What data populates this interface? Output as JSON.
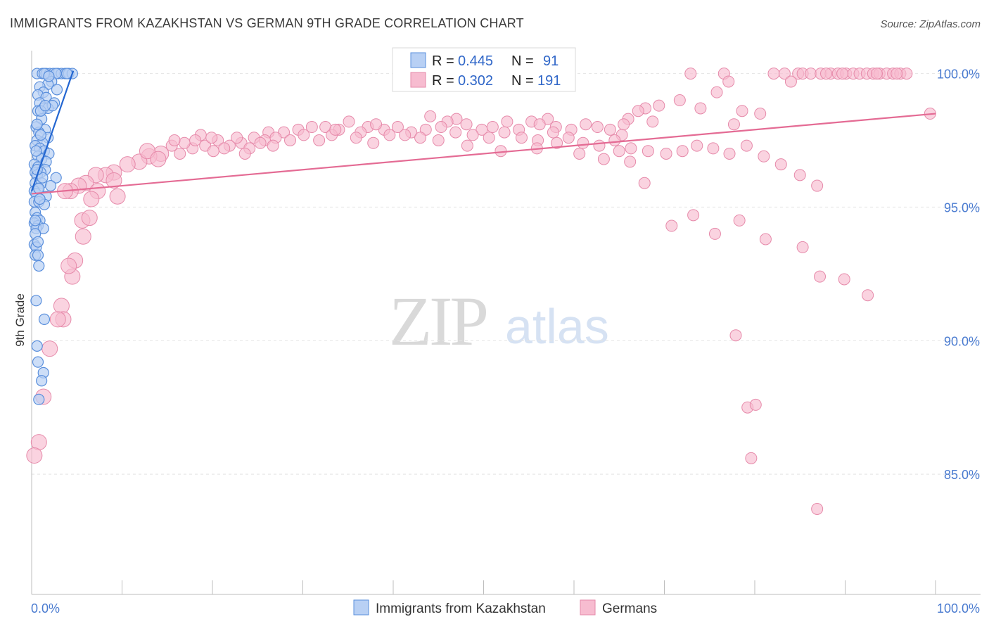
{
  "header": {
    "title": "IMMIGRANTS FROM KAZAKHSTAN VS GERMAN 9TH GRADE CORRELATION CHART",
    "source": "Source: ZipAtlas.com"
  },
  "watermark": {
    "zip": "ZIP",
    "atlas": "atlas"
  },
  "colors": {
    "blue_fill": "#b8d0f4",
    "blue_stroke": "#5a8fdc",
    "blue_line": "#2366d1",
    "pink_fill": "#f7bcd0",
    "pink_stroke": "#e68aaa",
    "pink_line": "#e46b94",
    "tick_label": "#4a7bd0",
    "grid": "#e4e4e4"
  },
  "stats_legend": {
    "rows": [
      {
        "r_label": "R =",
        "r_value": "0.445",
        "n_label": "N =",
        "n_value": "91"
      },
      {
        "r_label": "R =",
        "r_value": "0.302",
        "n_label": "N =",
        "n_value": "191"
      }
    ]
  },
  "bottom_legend": {
    "items": [
      {
        "label": "Immigrants from Kazakhstan"
      },
      {
        "label": "Germans"
      }
    ]
  },
  "chart_data": {
    "type": "scatter",
    "title": "IMMIGRANTS FROM KAZAKHSTAN VS GERMAN 9TH GRADE CORRELATION CHART",
    "xlabel": "",
    "ylabel": "9th Grade",
    "xlim": [
      0,
      100
    ],
    "ylim": [
      80.5,
      100.7
    ],
    "x_tick_labels": [
      "0.0%",
      "100.0%"
    ],
    "y_ticks": [
      85,
      90,
      95,
      100
    ],
    "y_tick_labels": [
      "85.0%",
      "90.0%",
      "95.0%",
      "100.0%"
    ],
    "grid": "horizontal dashed",
    "legend_position": "top-center",
    "series": [
      {
        "name": "Immigrants from Kazakhstan",
        "R": 0.445,
        "N": 91,
        "trend": {
          "x": [
            0.0,
            4.6
          ],
          "y": [
            95.6,
            100.1
          ]
        },
        "points": [
          [
            0.6,
            100
          ],
          [
            1.2,
            100
          ],
          [
            1.6,
            100
          ],
          [
            2.0,
            100
          ],
          [
            2.4,
            100
          ],
          [
            2.9,
            100
          ],
          [
            3.3,
            100
          ],
          [
            3.7,
            100
          ],
          [
            4.1,
            100
          ],
          [
            4.5,
            100
          ],
          [
            1.4,
            100
          ],
          [
            2.7,
            100
          ],
          [
            3.9,
            100
          ],
          [
            2.2,
            99.7
          ],
          [
            1.8,
            99.6
          ],
          [
            0.9,
            99.5
          ],
          [
            2.8,
            99.4
          ],
          [
            1.3,
            99.3
          ],
          [
            0.7,
            99.2
          ],
          [
            1.6,
            99.1
          ],
          [
            2.5,
            98.9
          ],
          [
            0.9,
            98.9
          ],
          [
            1.3,
            98.7
          ],
          [
            1.8,
            98.7
          ],
          [
            0.7,
            98.6
          ],
          [
            1.1,
            98.3
          ],
          [
            0.5,
            98.0
          ],
          [
            1.5,
            97.9
          ],
          [
            0.8,
            97.8
          ],
          [
            1.8,
            97.6
          ],
          [
            0.6,
            97.5
          ],
          [
            1.2,
            97.4
          ],
          [
            0.4,
            97.3
          ],
          [
            0.9,
            97.2
          ],
          [
            1.4,
            97.1
          ],
          [
            1.9,
            97.0
          ],
          [
            0.7,
            96.9
          ],
          [
            1.1,
            96.8
          ],
          [
            1.6,
            96.7
          ],
          [
            0.3,
            96.6
          ],
          [
            0.7,
            96.5
          ],
          [
            1.5,
            96.4
          ],
          [
            0.4,
            96.3
          ],
          [
            1.0,
            96.3
          ],
          [
            0.6,
            96.2
          ],
          [
            2.7,
            96.1
          ],
          [
            0.4,
            95.9
          ],
          [
            1.1,
            95.9
          ],
          [
            2.1,
            95.8
          ],
          [
            0.7,
            95.7
          ],
          [
            0.3,
            95.6
          ],
          [
            0.5,
            95.5
          ],
          [
            1.6,
            95.4
          ],
          [
            0.9,
            95.3
          ],
          [
            0.3,
            95.2
          ],
          [
            0.8,
            95.2
          ],
          [
            1.4,
            95.1
          ],
          [
            0.4,
            94.8
          ],
          [
            0.6,
            94.6
          ],
          [
            0.9,
            94.5
          ],
          [
            0.3,
            94.4
          ],
          [
            0.7,
            94.3
          ],
          [
            0.5,
            94.2
          ],
          [
            0.3,
            93.6
          ],
          [
            0.5,
            93.5
          ],
          [
            0.4,
            93.2
          ],
          [
            0.7,
            93.2
          ],
          [
            0.8,
            92.8
          ],
          [
            0.5,
            91.5
          ],
          [
            1.4,
            90.8
          ],
          [
            0.6,
            89.8
          ],
          [
            0.7,
            89.2
          ],
          [
            1.3,
            88.8
          ],
          [
            1.1,
            88.5
          ],
          [
            0.8,
            87.8
          ],
          [
            0.6,
            98.1
          ],
          [
            1.0,
            98.6
          ],
          [
            0.5,
            97.1
          ],
          [
            1.2,
            96.1
          ],
          [
            0.8,
            95.7
          ],
          [
            1.3,
            94.2
          ],
          [
            0.4,
            94.0
          ],
          [
            2.3,
            98.8
          ],
          [
            1.9,
            99.9
          ],
          [
            1.5,
            98.8
          ],
          [
            1.0,
            97.7
          ],
          [
            0.6,
            96.4
          ],
          [
            0.9,
            95.3
          ],
          [
            0.4,
            94.5
          ],
          [
            0.7,
            93.7
          ]
        ]
      },
      {
        "name": "Germans",
        "R": 0.302,
        "N": 191,
        "trend": {
          "x": [
            0,
            100
          ],
          "y": [
            95.5,
            98.5
          ]
        },
        "points": [
          [
            72.9,
            100
          ],
          [
            76.6,
            100
          ],
          [
            82.1,
            100
          ],
          [
            83.3,
            100
          ],
          [
            84.8,
            100
          ],
          [
            85.3,
            100
          ],
          [
            86.2,
            100
          ],
          [
            87.3,
            100
          ],
          [
            88.4,
            100
          ],
          [
            89.2,
            100
          ],
          [
            90.1,
            100
          ],
          [
            90.9,
            100
          ],
          [
            91.6,
            100
          ],
          [
            92.4,
            100
          ],
          [
            93.1,
            100
          ],
          [
            93.8,
            100
          ],
          [
            94.6,
            100
          ],
          [
            95.3,
            100
          ],
          [
            96.1,
            100
          ],
          [
            96.8,
            100
          ],
          [
            87.9,
            100
          ],
          [
            89.7,
            100
          ],
          [
            93.5,
            100
          ],
          [
            95.7,
            100
          ],
          [
            77.1,
            99.7
          ],
          [
            84.0,
            99.7
          ],
          [
            75.8,
            99.3
          ],
          [
            71.7,
            99.0
          ],
          [
            69.4,
            98.8
          ],
          [
            67.9,
            98.7
          ],
          [
            67.1,
            98.6
          ],
          [
            74.0,
            98.7
          ],
          [
            78.6,
            98.6
          ],
          [
            80.6,
            98.5
          ],
          [
            99.4,
            98.5
          ],
          [
            66.0,
            98.3
          ],
          [
            68.7,
            98.2
          ],
          [
            65.5,
            98.1
          ],
          [
            77.7,
            98.1
          ],
          [
            47.0,
            98.3
          ],
          [
            44.1,
            98.4
          ],
          [
            46.0,
            98.2
          ],
          [
            57.1,
            98.3
          ],
          [
            52.6,
            98.2
          ],
          [
            55.3,
            98.2
          ],
          [
            42.0,
            97.8
          ],
          [
            43.6,
            97.9
          ],
          [
            45.3,
            98.0
          ],
          [
            48.1,
            98.1
          ],
          [
            49.8,
            97.9
          ],
          [
            51.0,
            98.0
          ],
          [
            53.9,
            97.9
          ],
          [
            56.2,
            98.1
          ],
          [
            58.0,
            98.0
          ],
          [
            59.7,
            97.9
          ],
          [
            61.3,
            98.1
          ],
          [
            62.6,
            98.0
          ],
          [
            64.0,
            97.9
          ],
          [
            65.3,
            97.7
          ],
          [
            35.1,
            98.2
          ],
          [
            37.2,
            98.0
          ],
          [
            39.0,
            97.9
          ],
          [
            40.5,
            98.0
          ],
          [
            38.1,
            98.1
          ],
          [
            34.0,
            97.9
          ],
          [
            32.5,
            98.0
          ],
          [
            31.0,
            98.0
          ],
          [
            29.5,
            97.9
          ],
          [
            27.9,
            97.8
          ],
          [
            26.2,
            97.8
          ],
          [
            36.4,
            97.8
          ],
          [
            33.2,
            97.7
          ],
          [
            20.6,
            97.5
          ],
          [
            21.9,
            97.3
          ],
          [
            23.2,
            97.4
          ],
          [
            24.6,
            97.6
          ],
          [
            25.8,
            97.5
          ],
          [
            19.2,
            97.3
          ],
          [
            17.8,
            97.2
          ],
          [
            16.9,
            97.4
          ],
          [
            15.5,
            97.3
          ],
          [
            14.3,
            97.0
          ],
          [
            13.0,
            96.9
          ],
          [
            11.9,
            96.7
          ],
          [
            10.6,
            96.6
          ],
          [
            9.1,
            96.3
          ],
          [
            8.2,
            96.2
          ],
          [
            7.1,
            96.2
          ],
          [
            6.0,
            95.9
          ],
          [
            5.2,
            95.8
          ],
          [
            4.3,
            95.6
          ],
          [
            3.7,
            95.6
          ],
          [
            22.7,
            97.6
          ],
          [
            18.7,
            97.7
          ],
          [
            24.1,
            97.2
          ],
          [
            20.1,
            97.1
          ],
          [
            27.0,
            97.6
          ],
          [
            30.1,
            97.7
          ],
          [
            28.6,
            97.5
          ],
          [
            26.7,
            97.3
          ],
          [
            31.8,
            97.5
          ],
          [
            33.6,
            97.9
          ],
          [
            35.9,
            97.6
          ],
          [
            37.8,
            97.4
          ],
          [
            39.6,
            97.7
          ],
          [
            41.3,
            97.7
          ],
          [
            43.0,
            97.6
          ],
          [
            45.0,
            97.5
          ],
          [
            46.9,
            97.8
          ],
          [
            48.8,
            97.7
          ],
          [
            50.6,
            97.6
          ],
          [
            52.3,
            97.8
          ],
          [
            54.2,
            97.6
          ],
          [
            56.0,
            97.5
          ],
          [
            57.7,
            97.8
          ],
          [
            59.4,
            97.6
          ],
          [
            61.0,
            97.4
          ],
          [
            62.8,
            97.3
          ],
          [
            64.5,
            97.5
          ],
          [
            66.3,
            97.2
          ],
          [
            68.2,
            97.1
          ],
          [
            70.2,
            97.0
          ],
          [
            72.0,
            97.1
          ],
          [
            73.6,
            97.3
          ],
          [
            75.4,
            97.2
          ],
          [
            77.2,
            97.0
          ],
          [
            79.1,
            97.3
          ],
          [
            81.0,
            96.9
          ],
          [
            82.9,
            96.6
          ],
          [
            85.0,
            96.2
          ],
          [
            86.9,
            95.8
          ],
          [
            48.2,
            97.3
          ],
          [
            51.9,
            97.1
          ],
          [
            55.9,
            97.2
          ],
          [
            58.1,
            97.4
          ],
          [
            60.6,
            97.0
          ],
          [
            63.3,
            96.8
          ],
          [
            65.0,
            97.1
          ],
          [
            66.2,
            96.7
          ],
          [
            67.8,
            95.9
          ],
          [
            70.8,
            94.3
          ],
          [
            73.2,
            94.7
          ],
          [
            75.6,
            94.0
          ],
          [
            78.3,
            94.5
          ],
          [
            81.2,
            93.8
          ],
          [
            85.3,
            93.5
          ],
          [
            87.2,
            92.4
          ],
          [
            89.9,
            92.3
          ],
          [
            92.5,
            91.7
          ],
          [
            77.9,
            90.2
          ],
          [
            79.2,
            87.5
          ],
          [
            80.1,
            87.6
          ],
          [
            79.6,
            85.6
          ],
          [
            86.9,
            83.7
          ],
          [
            9.1,
            96.0
          ],
          [
            9.5,
            95.4
          ],
          [
            7.3,
            95.6
          ],
          [
            6.6,
            95.3
          ],
          [
            5.6,
            94.5
          ],
          [
            6.4,
            94.6
          ],
          [
            5.7,
            93.9
          ],
          [
            4.8,
            93.0
          ],
          [
            4.5,
            92.4
          ],
          [
            4.1,
            92.8
          ],
          [
            3.3,
            91.3
          ],
          [
            3.5,
            90.8
          ],
          [
            2.9,
            90.8
          ],
          [
            2.0,
            89.7
          ],
          [
            1.3,
            87.9
          ],
          [
            0.8,
            86.2
          ],
          [
            0.3,
            85.7
          ],
          [
            12.8,
            97.1
          ],
          [
            14.0,
            96.8
          ],
          [
            15.8,
            97.5
          ],
          [
            16.4,
            97.0
          ],
          [
            18.1,
            97.5
          ],
          [
            19.9,
            97.6
          ],
          [
            21.3,
            97.2
          ],
          [
            23.6,
            97.0
          ],
          [
            25.3,
            97.4
          ]
        ]
      }
    ]
  }
}
